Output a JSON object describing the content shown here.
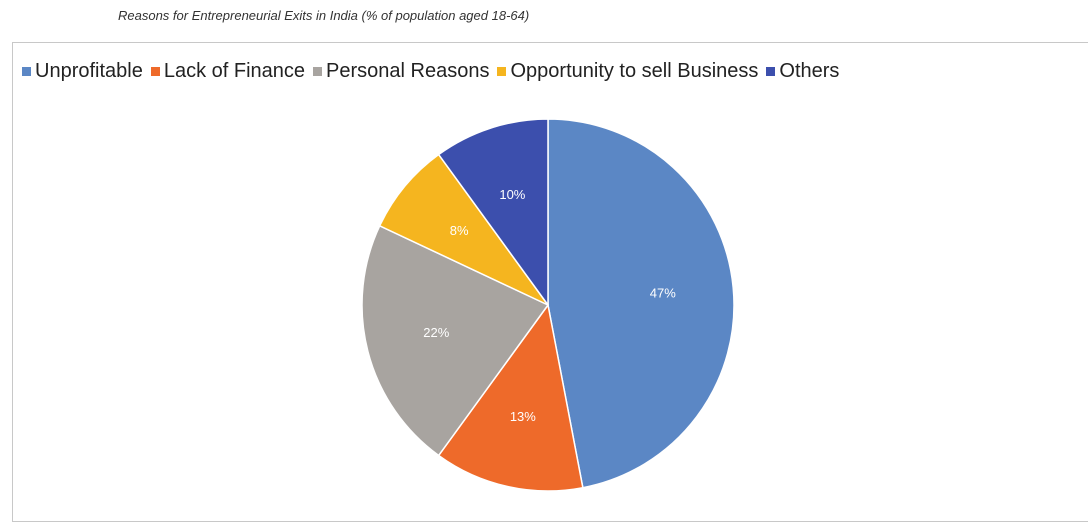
{
  "chart_data": {
    "type": "pie",
    "title": "Reasons for Entrepreneurial Exits in India (% of population aged 18-64)",
    "legend_position": "top",
    "slices": [
      {
        "name": "Unprofitable",
        "value": 47,
        "label": "47%",
        "color": "#5b87c5"
      },
      {
        "name": "Lack of Finance",
        "value": 13,
        "label": "13%",
        "color": "#ee6a2a"
      },
      {
        "name": "Personal Reasons",
        "value": 22,
        "label": "22%",
        "color": "#a8a4a0"
      },
      {
        "name": "Opportunity to sell Business",
        "value": 8,
        "label": "8%",
        "color": "#f5b51f"
      },
      {
        "name": "Others",
        "value": 10,
        "label": "10%",
        "color": "#3c4fad"
      }
    ]
  }
}
